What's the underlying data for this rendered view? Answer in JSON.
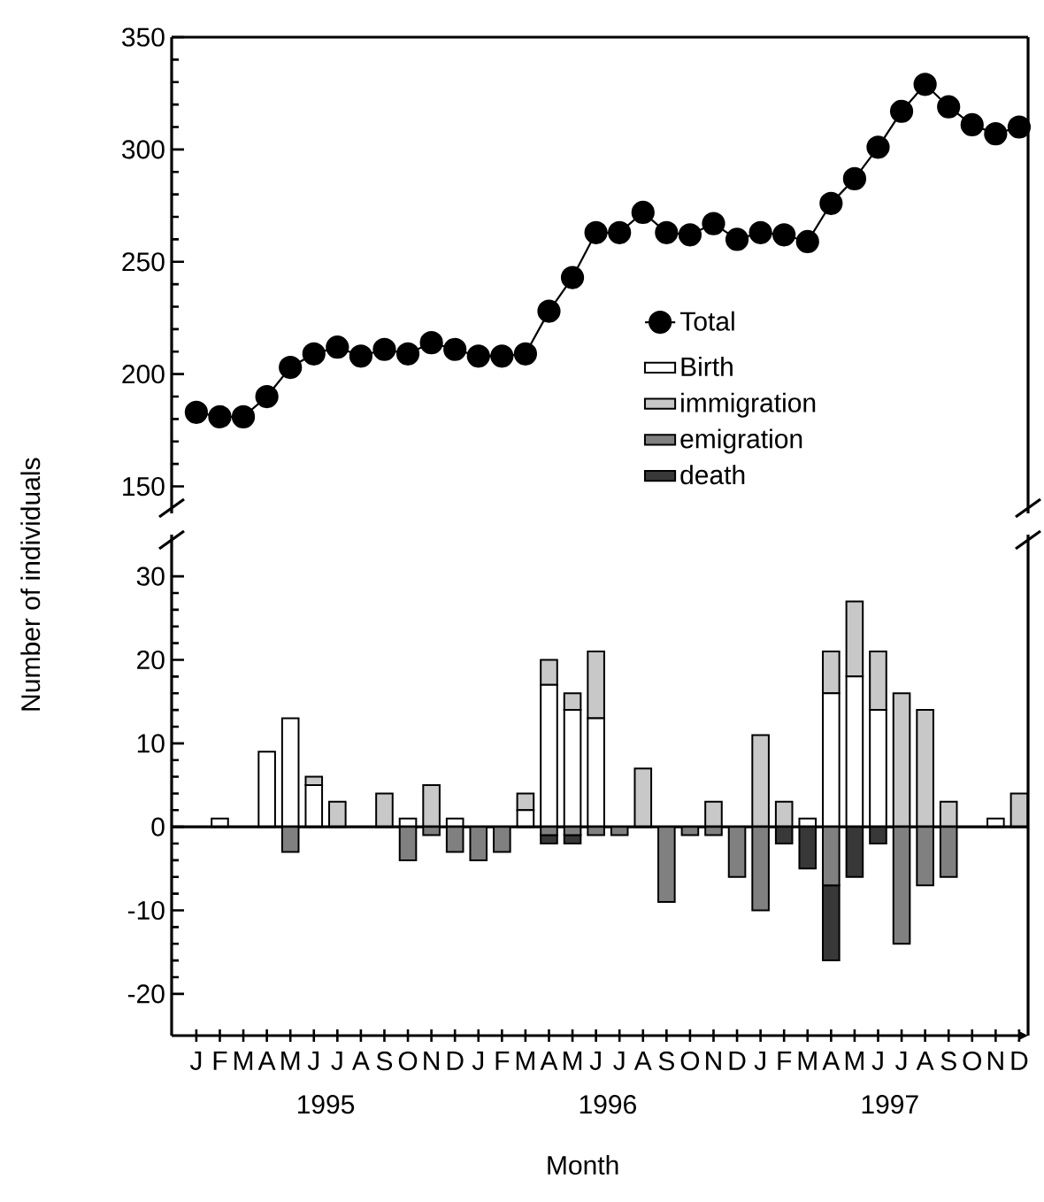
{
  "chart_data": [
    {
      "type": "line",
      "categories": [
        null,
        null,
        null,
        null,
        null,
        null,
        null,
        null,
        null,
        null,
        null,
        null,
        null,
        null,
        null,
        null,
        null,
        null,
        null,
        null,
        null,
        null,
        null,
        null,
        null,
        null,
        null,
        null,
        null,
        null,
        null,
        null,
        null,
        null,
        null,
        null
      ],
      "series": [
        {
          "name": "Total",
          "color": "#000000",
          "values": [
            183,
            181,
            181,
            190,
            203,
            209,
            212,
            208,
            211,
            209,
            214,
            211,
            208,
            208,
            209,
            228,
            243,
            263,
            263,
            272,
            263,
            262,
            267,
            260,
            263,
            262,
            259,
            276,
            287,
            301,
            317,
            329,
            319,
            311,
            307,
            310
          ]
        }
      ],
      "ylim": [
        138,
        350
      ],
      "yticks": [
        150,
        200,
        250,
        300,
        350
      ],
      "marker": "circle",
      "line_style": "solid",
      "legend": "bottom right"
    },
    {
      "type": "bar",
      "stacked": true,
      "categories": [
        "J",
        "F",
        "M",
        "A",
        "M",
        "J",
        "J",
        "A",
        "S",
        "O",
        "N",
        "D",
        "J",
        "F",
        "M",
        "A",
        "M",
        "J",
        "J",
        "A",
        "S",
        "O",
        "N",
        "D",
        "J",
        "F",
        "M",
        "A",
        "M",
        "J",
        "J",
        "A",
        "S",
        "O",
        "N",
        "D"
      ],
      "series": [
        {
          "name": "Birth",
          "color": "#ffffff",
          "values": [
            0,
            1,
            0,
            9,
            13,
            5,
            0,
            0,
            0,
            1,
            0,
            1,
            0,
            0,
            2,
            17,
            14,
            13,
            0,
            0,
            0,
            0,
            0,
            0,
            0,
            0,
            1,
            16,
            18,
            14,
            0,
            0,
            0,
            0,
            1,
            0
          ]
        },
        {
          "name": "immigration",
          "color": "#c8c8c8",
          "values": [
            0,
            0,
            0,
            0,
            0,
            1,
            3,
            0,
            4,
            0,
            5,
            0,
            0,
            0,
            2,
            3,
            2,
            8,
            0,
            7,
            0,
            0,
            3,
            0,
            11,
            3,
            0,
            5,
            9,
            7,
            16,
            14,
            3,
            0,
            0,
            4
          ]
        },
        {
          "name": "emigration",
          "color": "#808080",
          "values": [
            0,
            0,
            0,
            0,
            -3,
            0,
            0,
            0,
            0,
            -4,
            -1,
            -3,
            -4,
            -3,
            0,
            -1,
            -1,
            -1,
            -1,
            0,
            -9,
            -1,
            -1,
            -6,
            -10,
            0,
            0,
            -7,
            0,
            0,
            -14,
            -7,
            -6,
            0,
            0,
            0
          ]
        },
        {
          "name": "death",
          "color": "#383838",
          "values": [
            0,
            0,
            0,
            0,
            0,
            0,
            0,
            0,
            0,
            0,
            0,
            0,
            0,
            0,
            0,
            -1,
            -1,
            0,
            0,
            0,
            0,
            0,
            0,
            0,
            0,
            -2,
            -5,
            -9,
            -6,
            -2,
            0,
            0,
            0,
            0,
            0,
            0
          ]
        }
      ],
      "ylim": [
        -25,
        35
      ],
      "yticks": [
        -20,
        -10,
        0,
        10,
        20,
        30
      ],
      "xlabel": "Month",
      "ylabel": "Number of individuals",
      "ref_lines": [
        {
          "axis": "y",
          "value": 0
        }
      ],
      "legend": "top right",
      "annotations": [
        "1995",
        "1996",
        "1997"
      ]
    }
  ]
}
